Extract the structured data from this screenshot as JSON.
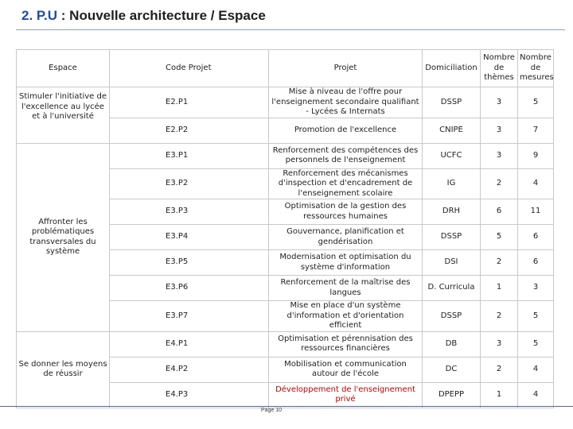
{
  "header": {
    "number": "2. P.U",
    "title": ": Nouvelle architecture / Espace"
  },
  "table": {
    "columns": [
      "Espace",
      "Code Projet",
      "Projet",
      "Domiciliation",
      "Nombre de thèmes",
      "Nombre de mesures"
    ],
    "groups": [
      {
        "espace": "Stimuler l'initiative de l'excellence au lycée et à l'université",
        "rows": [
          {
            "code": "E2.P1",
            "projet": "Mise à niveau de l'offre pour l'enseignement secondaire qualifiant - Lycées & Internats",
            "domiciliation": "DSSP",
            "themes": 3,
            "mesures": 5
          },
          {
            "code": "E2.P2",
            "projet": "Promotion de l'excellence",
            "domiciliation": "CNIPE",
            "themes": 3,
            "mesures": 7
          }
        ]
      },
      {
        "espace": "Affronter les problématiques transversales du système",
        "rows": [
          {
            "code": "E3.P1",
            "projet": "Renforcement des compétences des personnels de l'enseignement",
            "domiciliation": "UCFC",
            "themes": 3,
            "mesures": 9
          },
          {
            "code": "E3.P2",
            "projet": "Renforcement des mécanismes d'inspection et d'encadrement de l'enseignement scolaire",
            "domiciliation": "IG",
            "themes": 2,
            "mesures": 4
          },
          {
            "code": "E3.P3",
            "projet": "Optimisation de la gestion des ressources humaines",
            "domiciliation": "DRH",
            "themes": 6,
            "mesures": 11
          },
          {
            "code": "E3.P4",
            "projet": "Gouvernance, planification et gendérisation",
            "domiciliation": "DSSP",
            "themes": 5,
            "mesures": 6
          },
          {
            "code": "E3.P5",
            "projet": "Modernisation et optimisation du système d'information",
            "domiciliation": "DSI",
            "themes": 2,
            "mesures": 6
          },
          {
            "code": "E3.P6",
            "projet": "Renforcement de la maîtrise des langues",
            "domiciliation": "D. Curricula",
            "themes": 1,
            "mesures": 3
          },
          {
            "code": "E3.P7",
            "projet": "Mise en place d'un système d'information et d'orientation efficient",
            "domiciliation": "DSSP",
            "themes": 2,
            "mesures": 5
          }
        ]
      },
      {
        "espace": "Se donner les moyens de réussir",
        "rows": [
          {
            "code": "E4.P1",
            "projet": "Optimisation et pérennisation des ressources financières",
            "domiciliation": "DB",
            "themes": 3,
            "mesures": 5
          },
          {
            "code": "E4.P2",
            "projet": "Mobilisation et communication autour de l'école",
            "domiciliation": "DC",
            "themes": 2,
            "mesures": 4
          },
          {
            "code": "E4.P3",
            "projet": "Développement de l'enseignement privé",
            "domiciliation": "DPEPP",
            "themes": 1,
            "mesures": 4
          }
        ]
      }
    ]
  },
  "footer": {
    "page": "Page 10"
  }
}
